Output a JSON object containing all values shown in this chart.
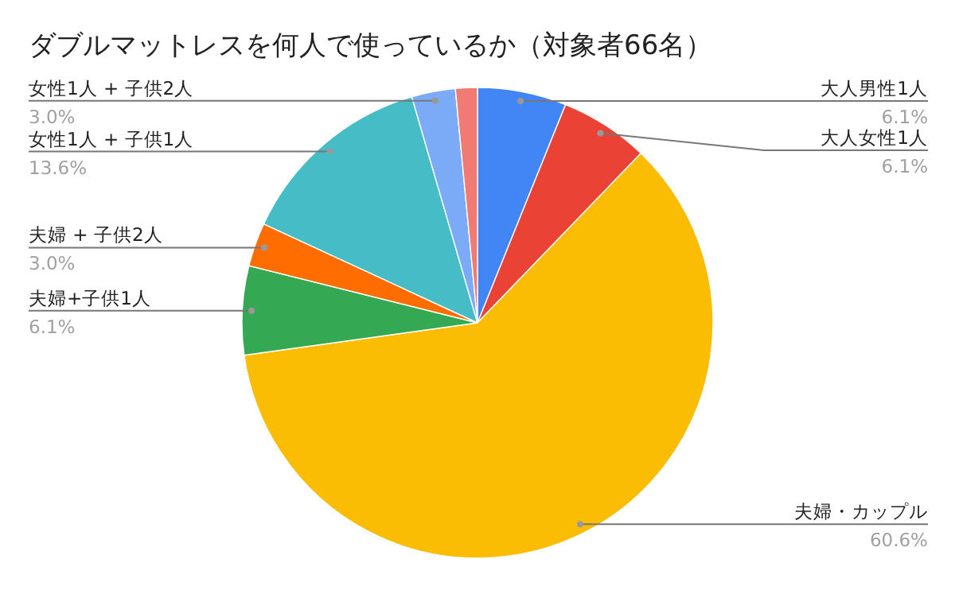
{
  "chart_data": {
    "type": "pie",
    "title": "ダブルマットレスを何人で使っているか（対象者66名）",
    "categories": [
      "大人男性1人",
      "大人女性1人",
      "夫婦・カップル",
      "夫婦+子供1人",
      "夫婦 + 子供2人",
      "女性1人 + 子供1人",
      "女性1人 + 子供2人",
      null
    ],
    "values": [
      6.1,
      6.1,
      60.6,
      6.1,
      3.0,
      13.6,
      3.0,
      1.5
    ],
    "colors": [
      "#4285f4",
      "#ea4335",
      "#fbbc04",
      "#34a853",
      "#ff6d01",
      "#46bdc6",
      "#7baaf7",
      "#f07b72"
    ],
    "value_labels": [
      "6.1%",
      "6.1%",
      "60.6%",
      "6.1%",
      "3.0%",
      "13.6%",
      "3.0%",
      null
    ],
    "legend": false
  }
}
